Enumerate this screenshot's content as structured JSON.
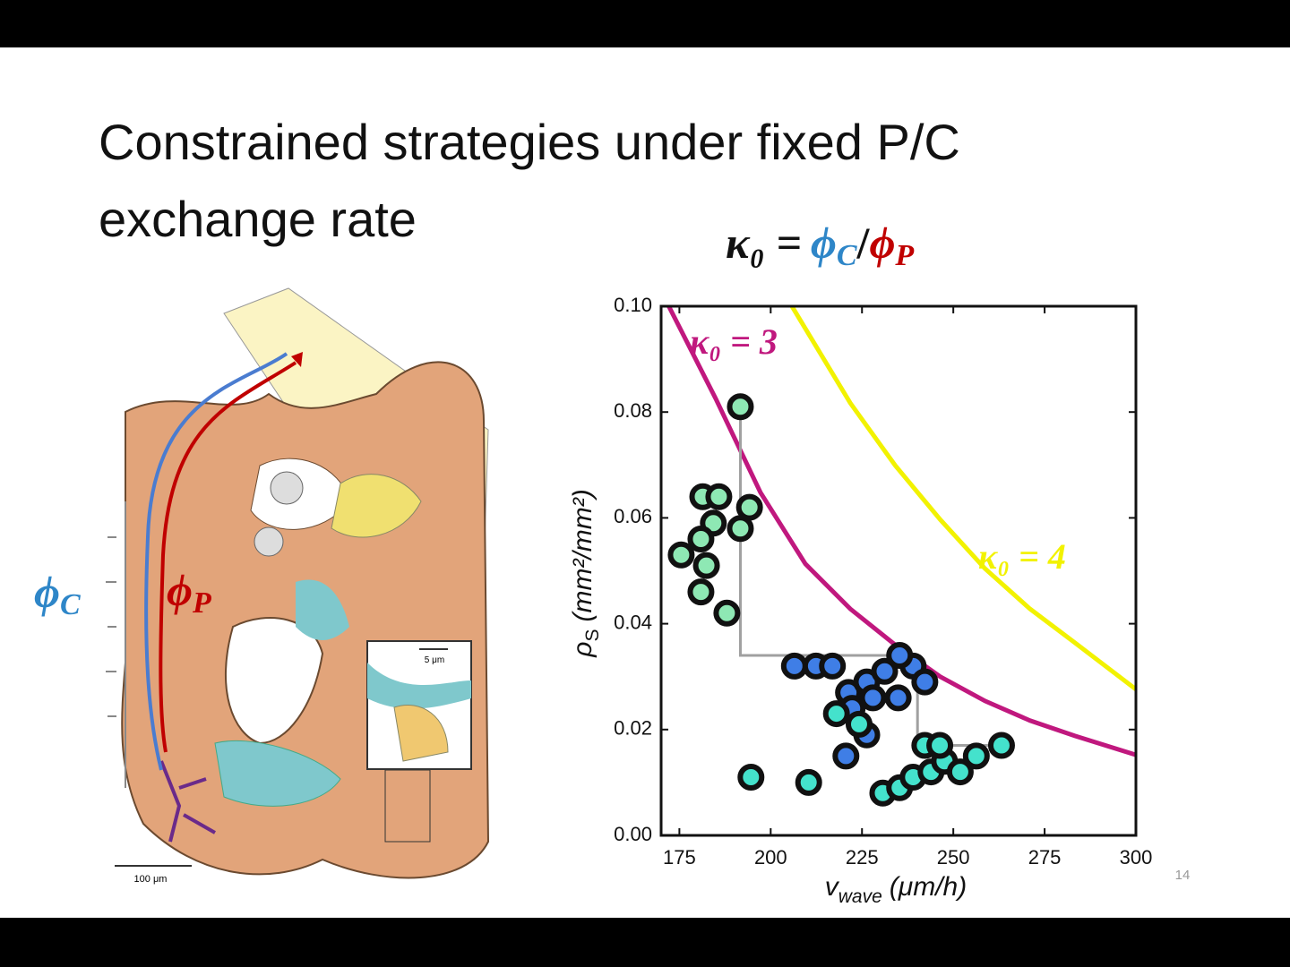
{
  "slide": {
    "title": "Constrained strategies under fixed P/C exchange rate",
    "page_number": "14"
  },
  "equation": {
    "lhs": "κ₀ =",
    "num": {
      "symbol": "ϕ",
      "sub": "C"
    },
    "slash": "/",
    "den": {
      "symbol": "ϕ",
      "sub": "P"
    }
  },
  "illustration": {
    "flux_c": {
      "symbol": "ϕ",
      "sub": "C"
    },
    "flux_p": {
      "symbol": "ϕ",
      "sub": "P"
    },
    "scale_large": "100 μm",
    "scale_small": "5 μm"
  },
  "chart_data": {
    "type": "scatter",
    "x_label": {
      "symbol": "v",
      "sub": "wave",
      "unit": "(μm/h)"
    },
    "y_label": {
      "symbol": "ρ",
      "sub": "S",
      "unit": "(mm²/mm²)"
    },
    "xlim": [
      170,
      300
    ],
    "ylim": [
      0,
      0.1
    ],
    "xticks": [
      175,
      200,
      225,
      250,
      275,
      300
    ],
    "yticks": [
      {
        "value": 0,
        "label": "0.00"
      },
      0.02,
      0.04,
      0.06,
      0.08,
      {
        "value": 0.1,
        "label": "0.10"
      }
    ],
    "annotations": [
      {
        "text": "κ₀ = 3",
        "color": "#c0187e"
      },
      {
        "text": "κ₀ = 4",
        "color": "#f2f200"
      }
    ],
    "series": [
      {
        "type": "line",
        "color": "#c0187e",
        "x": [
          172.1,
          184.9,
          197.2,
          209.5,
          221.8,
          234.1,
          246.4,
          258.7,
          271.0,
          283.3,
          300.0
        ],
        "y": [
          0.1,
          0.0826,
          0.0648,
          0.0513,
          0.0428,
          0.036,
          0.03,
          0.0254,
          0.0217,
          0.0188,
          0.0152
        ]
      },
      {
        "type": "line",
        "color": "#f2f200",
        "x": [
          205.8,
          221.8,
          234.1,
          246.4,
          258.7,
          271.0,
          283.3,
          300.0
        ],
        "y": [
          0.1,
          0.0817,
          0.0699,
          0.0597,
          0.0504,
          0.0428,
          0.0364,
          0.0276
        ]
      },
      {
        "type": "line",
        "color": "#a0a0a0",
        "x": [
          191.7,
          191.7,
          240.2,
          240.2,
          263.2
        ],
        "y": [
          0.081,
          0.034,
          0.034,
          0.017,
          0.017
        ]
      },
      {
        "type": "points",
        "color": "#8ee8b4",
        "x": [
          191.7,
          181.4,
          185.8,
          184.3,
          191.7,
          194.2,
          175.5,
          180.9,
          182.4,
          180.9,
          188.0
        ],
        "y": [
          0.081,
          0.064,
          0.064,
          0.059,
          0.058,
          0.062,
          0.053,
          0.056,
          0.051,
          0.046,
          0.042
        ]
      },
      {
        "type": "points",
        "color": "#3f7ee6",
        "x": [
          206.5,
          212.4,
          216.9,
          221.3,
          222.3,
          226.3,
          228.0,
          231.2,
          234.9,
          239.0,
          242.2,
          226.3,
          220.6,
          235.3
        ],
        "y": [
          0.032,
          0.032,
          0.032,
          0.027,
          0.024,
          0.029,
          0.026,
          0.031,
          0.026,
          0.032,
          0.029,
          0.019,
          0.015,
          0.034
        ]
      },
      {
        "type": "points",
        "color": "#44e2cc",
        "x": [
          194.6,
          210.4,
          218.0,
          224.2,
          230.7,
          235.3,
          239.0,
          243.9,
          247.6,
          242.2,
          251.9,
          256.3,
          263.2,
          246.3
        ],
        "y": [
          0.011,
          0.01,
          0.023,
          0.021,
          0.008,
          0.009,
          0.011,
          0.012,
          0.014,
          0.017,
          0.012,
          0.015,
          0.017,
          0.017
        ]
      }
    ]
  }
}
